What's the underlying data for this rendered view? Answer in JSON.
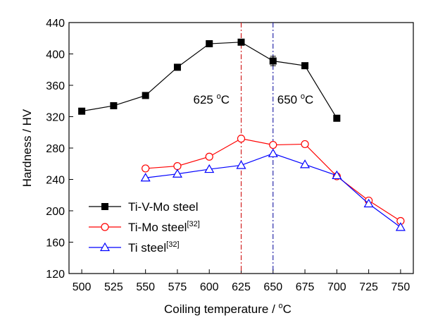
{
  "chart_data": {
    "type": "line",
    "xlabel": "Coiling temperature / ",
    "xlabel_unit": "C",
    "ylabel": "Hardness / HV",
    "xlim": [
      490,
      760
    ],
    "ylim": [
      120,
      440
    ],
    "x_ticks": [
      500,
      525,
      550,
      575,
      600,
      625,
      650,
      675,
      700,
      725,
      750
    ],
    "y_ticks": [
      120,
      160,
      200,
      240,
      280,
      320,
      360,
      400,
      440
    ],
    "grid": false,
    "legend_position": "bottom-left",
    "annotations": [
      {
        "text": "625 ",
        "unit": "C",
        "x": 625,
        "line_color": "#cc0000"
      },
      {
        "text": "650 ",
        "unit": "C",
        "x": 650,
        "line_color": "#000099"
      }
    ],
    "series": [
      {
        "name": "Ti-V-Mo steel",
        "name_sup": "",
        "color": "#000000",
        "marker": "square",
        "x": [
          500,
          525,
          550,
          575,
          600,
          625,
          650,
          675,
          700
        ],
        "y": [
          327,
          334,
          347,
          383,
          413,
          415,
          391,
          385,
          318
        ],
        "err": [
          0,
          0,
          0,
          0,
          4,
          0,
          6,
          0,
          0
        ]
      },
      {
        "name": "Ti-Mo steel",
        "name_sup": "[32]",
        "color": "#ff0000",
        "marker": "circle",
        "x": [
          550,
          575,
          600,
          625,
          650,
          675,
          700,
          725,
          750
        ],
        "y": [
          254,
          257,
          269,
          292,
          284,
          285,
          244,
          213,
          187
        ],
        "err": [
          0,
          0,
          0,
          0,
          0,
          0,
          0,
          0,
          0
        ]
      },
      {
        "name": "Ti steel",
        "name_sup": "[32]",
        "color": "#0000ff",
        "marker": "triangle",
        "x": [
          550,
          575,
          600,
          625,
          650,
          675,
          700,
          725,
          750
        ],
        "y": [
          242,
          247,
          253,
          258,
          273,
          259,
          245,
          209,
          179
        ],
        "err": [
          0,
          0,
          0,
          0,
          0,
          0,
          0,
          0,
          0
        ]
      }
    ]
  }
}
